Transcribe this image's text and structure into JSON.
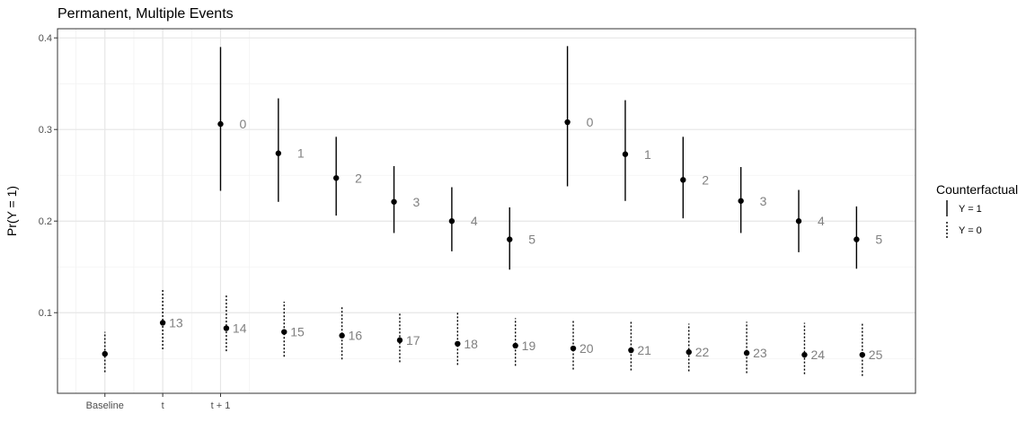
{
  "chart_data": {
    "type": "scatter",
    "title": "Permanent, Multiple Events",
    "xlabel": "",
    "ylabel": "Pr(Y = 1)",
    "ylim": [
      0.012,
      0.41
    ],
    "y_ticks": [
      0.1,
      0.2,
      0.3,
      0.4
    ],
    "y_tick_labels": [
      "0.1",
      "0.2",
      "0.3",
      "0.4"
    ],
    "x_ticks": [
      {
        "x": 1,
        "label": "Baseline"
      },
      {
        "x": 2,
        "label": "t"
      },
      {
        "x": 3,
        "label": "t + 1"
      }
    ],
    "xlim": [
      0.18,
      15.02
    ],
    "grid": true,
    "legend": {
      "title": "Counterfactual",
      "position": "right",
      "entries": [
        {
          "label": "Y = 1",
          "style": "solid"
        },
        {
          "label": "Y = 0",
          "style": "dotted"
        }
      ]
    },
    "series": [
      {
        "name": "Y = 1",
        "style": "solid",
        "points": [
          {
            "x": 3,
            "y": 0.306,
            "lo": 0.233,
            "hi": 0.39,
            "label": "0"
          },
          {
            "x": 4,
            "y": 0.274,
            "lo": 0.221,
            "hi": 0.334,
            "label": "1"
          },
          {
            "x": 5,
            "y": 0.247,
            "lo": 0.206,
            "hi": 0.292,
            "label": "2"
          },
          {
            "x": 6,
            "y": 0.221,
            "lo": 0.187,
            "hi": 0.26,
            "label": "3"
          },
          {
            "x": 7,
            "y": 0.2,
            "lo": 0.167,
            "hi": 0.237,
            "label": "4"
          },
          {
            "x": 8,
            "y": 0.18,
            "lo": 0.147,
            "hi": 0.215,
            "label": "5"
          },
          {
            "x": 9,
            "y": 0.308,
            "lo": 0.238,
            "hi": 0.391,
            "label": "0"
          },
          {
            "x": 10,
            "y": 0.273,
            "lo": 0.222,
            "hi": 0.332,
            "label": "1"
          },
          {
            "x": 11,
            "y": 0.245,
            "lo": 0.203,
            "hi": 0.292,
            "label": "2"
          },
          {
            "x": 12,
            "y": 0.222,
            "lo": 0.187,
            "hi": 0.259,
            "label": "3"
          },
          {
            "x": 13,
            "y": 0.2,
            "lo": 0.166,
            "hi": 0.234,
            "label": "4"
          },
          {
            "x": 14,
            "y": 0.18,
            "lo": 0.148,
            "hi": 0.216,
            "label": "5"
          }
        ]
      },
      {
        "name": "Y = 0",
        "style": "dotted",
        "points": [
          {
            "x": 1,
            "y": 0.055,
            "lo": 0.035,
            "hi": 0.079,
            "label": ""
          },
          {
            "x": 2,
            "y": 0.089,
            "lo": 0.06,
            "hi": 0.126,
            "label": "13"
          },
          {
            "x": 3.1,
            "y": 0.083,
            "lo": 0.058,
            "hi": 0.12,
            "label": "14"
          },
          {
            "x": 4.1,
            "y": 0.079,
            "lo": 0.052,
            "hi": 0.112,
            "label": "15"
          },
          {
            "x": 5.1,
            "y": 0.075,
            "lo": 0.049,
            "hi": 0.106,
            "label": "16"
          },
          {
            "x": 6.1,
            "y": 0.07,
            "lo": 0.046,
            "hi": 0.1,
            "label": "17"
          },
          {
            "x": 7.1,
            "y": 0.066,
            "lo": 0.043,
            "hi": 0.101,
            "label": "18"
          },
          {
            "x": 8.1,
            "y": 0.064,
            "lo": 0.042,
            "hi": 0.094,
            "label": "19"
          },
          {
            "x": 9.1,
            "y": 0.061,
            "lo": 0.038,
            "hi": 0.091,
            "label": "20"
          },
          {
            "x": 10.1,
            "y": 0.059,
            "lo": 0.037,
            "hi": 0.09,
            "label": "21"
          },
          {
            "x": 11.1,
            "y": 0.057,
            "lo": 0.036,
            "hi": 0.088,
            "label": "22"
          },
          {
            "x": 12.1,
            "y": 0.056,
            "lo": 0.034,
            "hi": 0.09,
            "label": "23"
          },
          {
            "x": 13.1,
            "y": 0.054,
            "lo": 0.033,
            "hi": 0.089,
            "label": "24"
          },
          {
            "x": 14.1,
            "y": 0.054,
            "lo": 0.031,
            "hi": 0.088,
            "label": "25"
          }
        ]
      }
    ]
  }
}
